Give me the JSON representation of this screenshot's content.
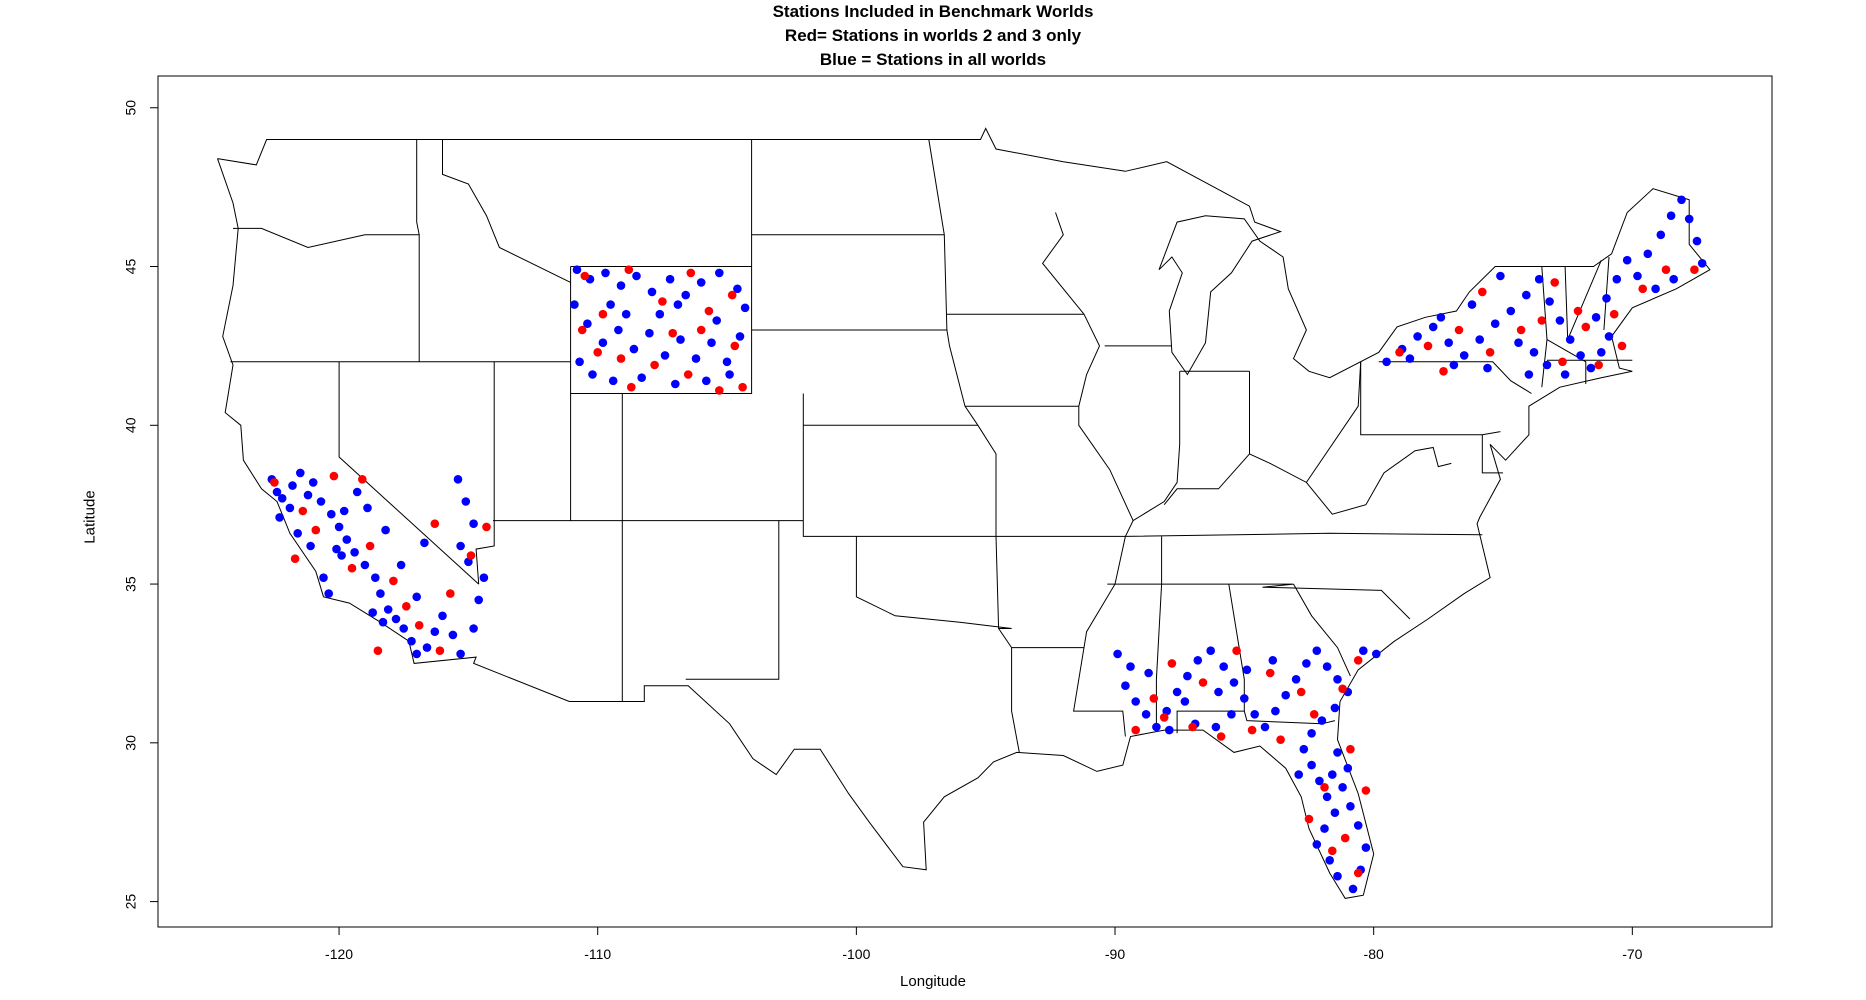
{
  "title": {
    "line1": "Stations Included in Benchmark Worlds",
    "line2": "Red= Stations in worlds 2 and 3 only",
    "line3": "Blue = Stations in all worlds"
  },
  "chart_data": {
    "type": "scatter",
    "xlabel": "Longitude",
    "ylabel": "Latitude",
    "xlim": [
      -127,
      -64.6
    ],
    "ylim": [
      24.2,
      51
    ],
    "x_ticks": [
      -120,
      -110,
      -100,
      -90,
      -80,
      -70
    ],
    "y_ticks": [
      25,
      30,
      35,
      40,
      45,
      50
    ],
    "x_tick_labels": [
      "-120",
      "-110",
      "-100",
      "-90",
      "-80",
      "-70"
    ],
    "y_tick_labels": [
      "25",
      "30",
      "35",
      "40",
      "45",
      "50"
    ],
    "grid": false,
    "basemap": "contiguous United States with state boundaries",
    "series": [
      {
        "color": "#0000ff",
        "points": [
          [
            -122.6,
            38.3
          ],
          [
            -122.4,
            37.9
          ],
          [
            -122.2,
            37.7
          ],
          [
            -121.9,
            37.4
          ],
          [
            -121.8,
            38.1
          ],
          [
            -121.5,
            38.5
          ],
          [
            -121.2,
            37.8
          ],
          [
            -121.0,
            38.2
          ],
          [
            -120.7,
            37.6
          ],
          [
            -120.3,
            37.2
          ],
          [
            -120.0,
            36.8
          ],
          [
            -119.7,
            36.4
          ],
          [
            -119.4,
            36.0
          ],
          [
            -119.8,
            37.3
          ],
          [
            -119.3,
            37.9
          ],
          [
            -118.9,
            37.4
          ],
          [
            -119.0,
            35.6
          ],
          [
            -118.6,
            35.2
          ],
          [
            -118.4,
            34.7
          ],
          [
            -118.1,
            34.2
          ],
          [
            -117.8,
            33.9
          ],
          [
            -117.5,
            33.6
          ],
          [
            -117.2,
            33.2
          ],
          [
            -117.0,
            32.8
          ],
          [
            -116.6,
            33.0
          ],
          [
            -116.3,
            33.5
          ],
          [
            -116.0,
            34.0
          ],
          [
            -115.6,
            33.4
          ],
          [
            -115.3,
            32.8
          ],
          [
            -114.8,
            33.6
          ],
          [
            -114.6,
            34.5
          ],
          [
            -114.4,
            35.2
          ],
          [
            -115.0,
            35.7
          ],
          [
            -115.3,
            36.2
          ],
          [
            -114.8,
            36.9
          ],
          [
            -115.1,
            37.6
          ],
          [
            -115.4,
            38.3
          ],
          [
            -120.6,
            35.2
          ],
          [
            -120.4,
            34.7
          ],
          [
            -119.9,
            35.9
          ],
          [
            -118.2,
            36.7
          ],
          [
            -117.6,
            35.6
          ],
          [
            -117.0,
            34.6
          ],
          [
            -116.7,
            36.3
          ],
          [
            -118.7,
            34.1
          ],
          [
            -118.3,
            33.8
          ],
          [
            -122.3,
            37.1
          ],
          [
            -121.6,
            36.6
          ],
          [
            -121.1,
            36.2
          ],
          [
            -120.1,
            36.1
          ],
          [
            -110.8,
            44.9
          ],
          [
            -110.3,
            44.6
          ],
          [
            -109.7,
            44.8
          ],
          [
            -109.1,
            44.4
          ],
          [
            -108.5,
            44.7
          ],
          [
            -107.9,
            44.2
          ],
          [
            -107.2,
            44.6
          ],
          [
            -106.6,
            44.1
          ],
          [
            -106.0,
            44.5
          ],
          [
            -105.3,
            44.8
          ],
          [
            -104.6,
            44.3
          ],
          [
            -110.9,
            43.8
          ],
          [
            -110.4,
            43.2
          ],
          [
            -109.8,
            42.6
          ],
          [
            -109.2,
            43.0
          ],
          [
            -108.6,
            42.4
          ],
          [
            -108.0,
            42.9
          ],
          [
            -107.4,
            42.2
          ],
          [
            -106.8,
            42.7
          ],
          [
            -106.2,
            42.1
          ],
          [
            -105.6,
            42.6
          ],
          [
            -105.0,
            42.0
          ],
          [
            -104.5,
            42.8
          ],
          [
            -110.7,
            42.0
          ],
          [
            -110.2,
            41.6
          ],
          [
            -109.4,
            41.4
          ],
          [
            -108.3,
            41.5
          ],
          [
            -107.0,
            41.3
          ],
          [
            -105.8,
            41.4
          ],
          [
            -104.9,
            41.6
          ],
          [
            -107.6,
            43.5
          ],
          [
            -106.9,
            43.8
          ],
          [
            -105.4,
            43.3
          ],
          [
            -104.3,
            43.7
          ],
          [
            -109.5,
            43.8
          ],
          [
            -108.9,
            43.5
          ],
          [
            -89.9,
            32.8
          ],
          [
            -89.4,
            32.4
          ],
          [
            -89.6,
            31.8
          ],
          [
            -89.2,
            31.3
          ],
          [
            -88.8,
            30.9
          ],
          [
            -88.4,
            30.5
          ],
          [
            -88.0,
            31.0
          ],
          [
            -87.6,
            31.6
          ],
          [
            -87.2,
            32.1
          ],
          [
            -86.8,
            32.6
          ],
          [
            -86.3,
            32.9
          ],
          [
            -85.8,
            32.4
          ],
          [
            -85.4,
            31.9
          ],
          [
            -85.0,
            31.4
          ],
          [
            -84.6,
            30.9
          ],
          [
            -84.2,
            30.5
          ],
          [
            -83.8,
            31.0
          ],
          [
            -83.4,
            31.5
          ],
          [
            -83.0,
            32.0
          ],
          [
            -82.6,
            32.5
          ],
          [
            -82.2,
            32.9
          ],
          [
            -81.8,
            32.4
          ],
          [
            -81.4,
            32.0
          ],
          [
            -81.0,
            31.6
          ],
          [
            -81.5,
            31.1
          ],
          [
            -82.0,
            30.7
          ],
          [
            -82.4,
            30.3
          ],
          [
            -82.7,
            29.8
          ],
          [
            -82.4,
            29.3
          ],
          [
            -82.1,
            28.8
          ],
          [
            -81.8,
            28.3
          ],
          [
            -81.5,
            27.8
          ],
          [
            -81.9,
            27.3
          ],
          [
            -82.2,
            26.8
          ],
          [
            -81.7,
            26.3
          ],
          [
            -81.4,
            25.8
          ],
          [
            -80.8,
            25.4
          ],
          [
            -80.5,
            26.0
          ],
          [
            -80.3,
            26.7
          ],
          [
            -80.6,
            27.4
          ],
          [
            -80.9,
            28.0
          ],
          [
            -81.2,
            28.6
          ],
          [
            -81.0,
            29.2
          ],
          [
            -81.4,
            29.7
          ],
          [
            -87.9,
            30.4
          ],
          [
            -86.9,
            30.6
          ],
          [
            -86.1,
            30.5
          ],
          [
            -85.5,
            30.9
          ],
          [
            -88.7,
            32.2
          ],
          [
            -87.3,
            31.3
          ],
          [
            -86.0,
            31.6
          ],
          [
            -84.9,
            32.3
          ],
          [
            -83.9,
            32.6
          ],
          [
            -80.4,
            32.9
          ],
          [
            -79.9,
            32.8
          ],
          [
            -82.9,
            29.0
          ],
          [
            -81.6,
            29.0
          ],
          [
            -79.5,
            42.0
          ],
          [
            -78.9,
            42.4
          ],
          [
            -78.3,
            42.8
          ],
          [
            -77.7,
            43.1
          ],
          [
            -77.1,
            42.6
          ],
          [
            -76.5,
            42.2
          ],
          [
            -75.9,
            42.7
          ],
          [
            -75.3,
            43.2
          ],
          [
            -74.7,
            43.6
          ],
          [
            -74.1,
            44.1
          ],
          [
            -73.6,
            44.6
          ],
          [
            -73.2,
            43.9
          ],
          [
            -72.8,
            43.3
          ],
          [
            -72.4,
            42.7
          ],
          [
            -72.0,
            42.2
          ],
          [
            -71.6,
            41.8
          ],
          [
            -71.2,
            42.3
          ],
          [
            -70.9,
            42.8
          ],
          [
            -71.4,
            43.4
          ],
          [
            -71.0,
            44.0
          ],
          [
            -70.6,
            44.6
          ],
          [
            -70.2,
            45.2
          ],
          [
            -69.8,
            44.7
          ],
          [
            -69.4,
            45.4
          ],
          [
            -68.9,
            46.0
          ],
          [
            -68.5,
            46.6
          ],
          [
            -68.1,
            47.1
          ],
          [
            -67.8,
            46.5
          ],
          [
            -67.5,
            45.8
          ],
          [
            -67.3,
            45.1
          ],
          [
            -68.4,
            44.6
          ],
          [
            -69.1,
            44.3
          ],
          [
            -75.1,
            44.7
          ],
          [
            -76.2,
            43.8
          ],
          [
            -77.4,
            43.4
          ],
          [
            -78.6,
            42.1
          ],
          [
            -74.4,
            42.6
          ],
          [
            -73.8,
            42.3
          ],
          [
            -73.3,
            41.9
          ],
          [
            -72.6,
            41.6
          ],
          [
            -76.9,
            41.9
          ],
          [
            -75.6,
            41.8
          ],
          [
            -74.0,
            41.6
          ]
        ]
      },
      {
        "color": "#ff0000",
        "points": [
          [
            -122.5,
            38.2
          ],
          [
            -121.4,
            37.3
          ],
          [
            -120.9,
            36.7
          ],
          [
            -120.2,
            38.4
          ],
          [
            -119.5,
            35.5
          ],
          [
            -118.8,
            36.2
          ],
          [
            -117.9,
            35.1
          ],
          [
            -117.4,
            34.3
          ],
          [
            -116.9,
            33.7
          ],
          [
            -116.1,
            32.9
          ],
          [
            -115.7,
            34.7
          ],
          [
            -114.9,
            35.9
          ],
          [
            -114.3,
            36.8
          ],
          [
            -116.3,
            36.9
          ],
          [
            -119.1,
            38.3
          ],
          [
            -121.7,
            35.8
          ],
          [
            -118.5,
            32.9
          ],
          [
            -110.5,
            44.7
          ],
          [
            -109.8,
            43.5
          ],
          [
            -108.8,
            44.9
          ],
          [
            -107.5,
            43.9
          ],
          [
            -106.4,
            44.8
          ],
          [
            -105.7,
            43.6
          ],
          [
            -104.8,
            44.1
          ],
          [
            -104.4,
            41.2
          ],
          [
            -105.3,
            41.1
          ],
          [
            -106.5,
            41.6
          ],
          [
            -107.8,
            41.9
          ],
          [
            -108.7,
            41.2
          ],
          [
            -110.0,
            42.3
          ],
          [
            -109.1,
            42.1
          ],
          [
            -107.1,
            42.9
          ],
          [
            -106.0,
            43.0
          ],
          [
            -104.7,
            42.5
          ],
          [
            -110.6,
            43.0
          ],
          [
            -89.2,
            30.4
          ],
          [
            -88.1,
            30.8
          ],
          [
            -87.0,
            30.5
          ],
          [
            -85.9,
            30.2
          ],
          [
            -84.7,
            30.4
          ],
          [
            -83.6,
            30.1
          ],
          [
            -82.3,
            30.9
          ],
          [
            -81.2,
            31.7
          ],
          [
            -80.6,
            32.6
          ],
          [
            -82.8,
            31.6
          ],
          [
            -84.0,
            32.2
          ],
          [
            -85.3,
            32.9
          ],
          [
            -86.6,
            31.9
          ],
          [
            -87.8,
            32.5
          ],
          [
            -88.5,
            31.4
          ],
          [
            -81.9,
            28.6
          ],
          [
            -81.1,
            27.0
          ],
          [
            -80.3,
            28.5
          ],
          [
            -80.9,
            29.8
          ],
          [
            -82.5,
            27.6
          ],
          [
            -81.6,
            26.6
          ],
          [
            -80.6,
            25.9
          ],
          [
            -79.0,
            42.3
          ],
          [
            -77.9,
            42.5
          ],
          [
            -76.7,
            43.0
          ],
          [
            -75.5,
            42.3
          ],
          [
            -74.3,
            43.0
          ],
          [
            -73.5,
            43.3
          ],
          [
            -72.7,
            42.0
          ],
          [
            -71.8,
            43.1
          ],
          [
            -71.3,
            41.9
          ],
          [
            -70.7,
            43.5
          ],
          [
            -69.6,
            44.3
          ],
          [
            -68.7,
            44.9
          ],
          [
            -72.1,
            43.6
          ],
          [
            -73.0,
            44.5
          ],
          [
            -75.8,
            44.2
          ],
          [
            -77.3,
            41.7
          ],
          [
            -70.4,
            42.5
          ],
          [
            -67.6,
            44.9
          ]
        ]
      }
    ]
  }
}
